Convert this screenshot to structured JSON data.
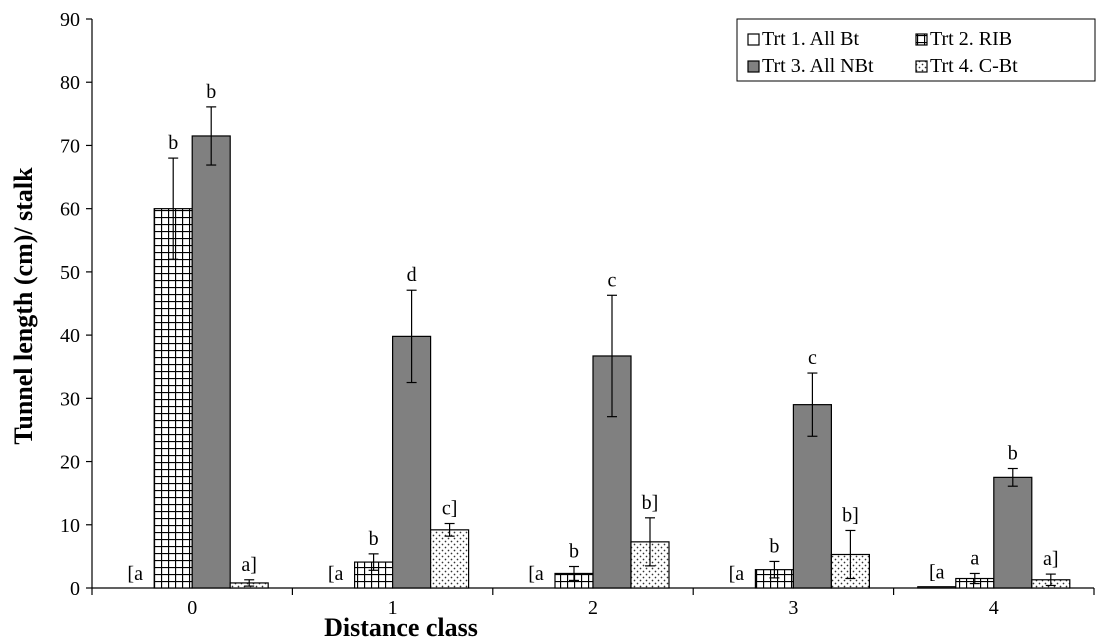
{
  "chart_data": {
    "type": "bar",
    "xlabel": "Distance class",
    "ylabel": "Tunnel length (cm)/ stalk",
    "categories": [
      "0",
      "1",
      "2",
      "3",
      "4"
    ],
    "ylim": [
      0,
      90
    ],
    "yticks": [
      0,
      10,
      20,
      30,
      40,
      50,
      60,
      70,
      80,
      90
    ],
    "grid": false,
    "legend_position": "top-right",
    "series": [
      {
        "name": "Trt 1. All Bt",
        "pattern": "none",
        "color": "#ffffff",
        "values": [
          0,
          0,
          0,
          0,
          0.2
        ],
        "errors": [
          null,
          null,
          null,
          null,
          null
        ],
        "letters": [
          "[a",
          "[a",
          "[a",
          "[a",
          "[a"
        ]
      },
      {
        "name": "Trt 2. RIB",
        "pattern": "grid",
        "color": "#ffffff",
        "values": [
          60,
          4.1,
          2.3,
          2.9,
          1.5
        ],
        "errors": [
          8,
          1.3,
          1.1,
          1.3,
          0.8
        ],
        "letters": [
          "b",
          "b",
          "b",
          "b",
          "a"
        ]
      },
      {
        "name": "Trt 3. All NBt",
        "pattern": "solid",
        "color": "#808080",
        "values": [
          71.5,
          39.8,
          36.7,
          29,
          17.5
        ],
        "errors": [
          4.6,
          7.3,
          9.6,
          5,
          1.4
        ],
        "letters": [
          "b",
          "d",
          "c",
          "c",
          "b"
        ]
      },
      {
        "name": "Trt 4. C-Bt",
        "pattern": "dots",
        "color": "#ffffff",
        "values": [
          0.8,
          9.2,
          7.3,
          5.3,
          1.3
        ],
        "errors": [
          0.5,
          1,
          3.8,
          3.8,
          0.9
        ],
        "letters": [
          "a]",
          "c]",
          "b]",
          "b]",
          "a]"
        ]
      }
    ]
  }
}
